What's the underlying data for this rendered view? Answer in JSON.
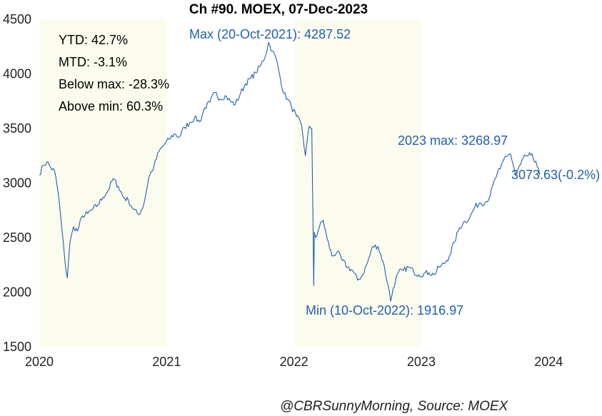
{
  "chart_data": {
    "type": "line",
    "title": "Ch #90. MOEX, 07-Dec-2023",
    "xlabel": "",
    "ylabel": "",
    "xlim": [
      2020.0,
      2024.15
    ],
    "ylim": [
      1500,
      4500
    ],
    "x_ticks": [
      2020,
      2021,
      2022,
      2023,
      2024
    ],
    "x_tick_labels": [
      "2020",
      "2021",
      "2022",
      "2023",
      "2024"
    ],
    "y_ticks": [
      1500,
      2000,
      2500,
      3000,
      3500,
      4000,
      4500
    ],
    "y_tick_labels": [
      "1500",
      "2000",
      "2500",
      "3000",
      "3500",
      "4000",
      "4500"
    ],
    "grid": false,
    "line_color": "#1f5fb0",
    "shade_color": "#fcfcee",
    "shaded_years": [
      [
        2020,
        2021
      ],
      [
        2022,
        2023
      ]
    ],
    "stats": [
      "YTD: 42.7%",
      "MTD: -3.1%",
      "Below max: -28.3%",
      "Above min: 60.3%"
    ],
    "annotations": {
      "max": "Max (20-Oct-2021): 4287.52",
      "min": "Min (10-Oct-2022): 1916.97",
      "year_max": "2023 max: 3268.97",
      "last": "3073.63(-0.2%)"
    },
    "source": "@CBRSunnyMorning, Source: MOEX",
    "series": [
      {
        "x": [
          2020.0,
          2020.03,
          2020.06,
          2020.09,
          2020.12,
          2020.15,
          2020.18,
          2020.2,
          2020.22,
          2020.24,
          2020.27,
          2020.3,
          2020.34,
          2020.38,
          2020.42,
          2020.46,
          2020.5,
          2020.54,
          2020.58,
          2020.62,
          2020.66,
          2020.7,
          2020.74,
          2020.78,
          2020.82,
          2020.86,
          2020.9,
          2020.94,
          2020.98,
          2021.02,
          2021.06,
          2021.1,
          2021.14,
          2021.18,
          2021.22,
          2021.26,
          2021.3,
          2021.34,
          2021.38,
          2021.42,
          2021.46,
          2021.5,
          2021.54,
          2021.58,
          2021.62,
          2021.66,
          2021.7,
          2021.74,
          2021.78,
          2021.8,
          2021.83,
          2021.86,
          2021.89,
          2021.92,
          2021.95,
          2021.98,
          2022.02,
          2022.06,
          2022.09,
          2022.12,
          2022.14,
          2022.15,
          2022.155,
          2022.16,
          2022.17,
          2022.2,
          2022.23,
          2022.26,
          2022.3,
          2022.34,
          2022.38,
          2022.42,
          2022.46,
          2022.5,
          2022.54,
          2022.58,
          2022.62,
          2022.66,
          2022.7,
          2022.74,
          2022.76,
          2022.78,
          2022.82,
          2022.86,
          2022.9,
          2022.94,
          2022.98,
          2023.02,
          2023.06,
          2023.1,
          2023.14,
          2023.18,
          2023.22,
          2023.26,
          2023.3,
          2023.34,
          2023.38,
          2023.42,
          2023.46,
          2023.5,
          2023.54,
          2023.58,
          2023.62,
          2023.66,
          2023.7,
          2023.74,
          2023.78,
          2023.82,
          2023.86,
          2023.9,
          2023.93
        ],
        "y": [
          3076,
          3160,
          3195,
          3140,
          3110,
          2900,
          2550,
          2300,
          2130,
          2450,
          2600,
          2560,
          2700,
          2720,
          2760,
          2800,
          2870,
          2930,
          3040,
          2970,
          2870,
          2840,
          2760,
          2710,
          2800,
          3050,
          3150,
          3290,
          3350,
          3400,
          3450,
          3420,
          3510,
          3550,
          3600,
          3560,
          3690,
          3740,
          3830,
          3770,
          3800,
          3750,
          3720,
          3820,
          3910,
          3960,
          4010,
          4080,
          4180,
          4287,
          4210,
          4140,
          3980,
          3820,
          3770,
          3700,
          3610,
          3530,
          3250,
          3520,
          3500,
          2600,
          2060,
          2550,
          2500,
          2600,
          2660,
          2490,
          2330,
          2370,
          2290,
          2230,
          2200,
          2110,
          2160,
          2280,
          2420,
          2420,
          2280,
          2060,
          1917,
          2040,
          2180,
          2200,
          2230,
          2190,
          2160,
          2170,
          2180,
          2160,
          2230,
          2260,
          2330,
          2460,
          2590,
          2650,
          2680,
          2780,
          2820,
          2820,
          2880,
          3040,
          3130,
          3245,
          3269,
          3070,
          3170,
          3250,
          3255,
          3200,
          3073
        ]
      }
    ]
  }
}
